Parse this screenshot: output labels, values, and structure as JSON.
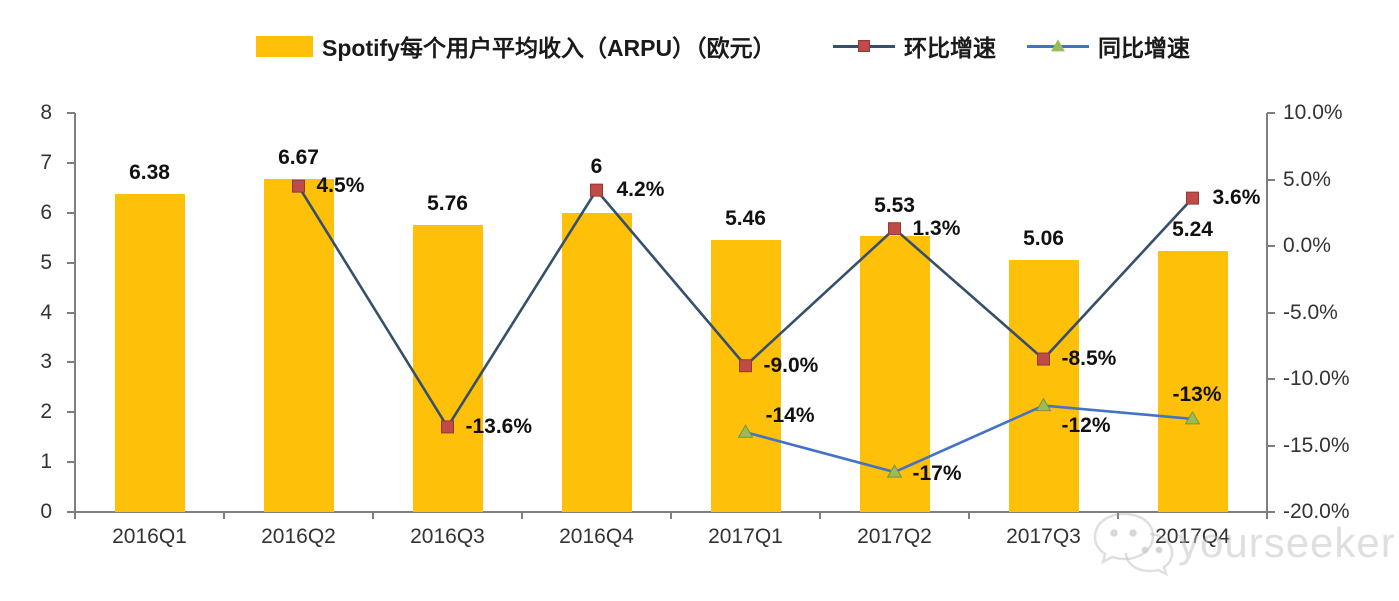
{
  "chart_data": {
    "type": "combo",
    "categories": [
      "2016Q1",
      "2016Q2",
      "2016Q3",
      "2016Q4",
      "2017Q1",
      "2017Q2",
      "2017Q3",
      "2017Q4"
    ],
    "series": [
      {
        "name": "Spotify每个用户平均收入（ARPU）（欧元）",
        "type": "bar",
        "yaxis": "left",
        "color": "#FFC00A",
        "values": [
          6.38,
          6.67,
          5.76,
          6,
          5.46,
          5.53,
          5.06,
          5.24
        ],
        "labels": [
          "6.38",
          "6.67",
          "5.76",
          "6",
          "5.46",
          "5.53",
          "5.06",
          "5.24"
        ]
      },
      {
        "name": "环比增速",
        "type": "line",
        "yaxis": "right",
        "color": "#364F6B",
        "marker": "square",
        "marker_color": "#BE4B48",
        "marker_edge": "#953735",
        "values": [
          null,
          4.5,
          -13.6,
          4.2,
          -9.0,
          1.3,
          -8.5,
          3.6
        ],
        "labels": [
          null,
          "4.5%",
          "-13.6%",
          "4.2%",
          "-9.0%",
          "1.3%",
          "-8.5%",
          "3.6%"
        ]
      },
      {
        "name": "同比增速",
        "type": "line",
        "yaxis": "right",
        "color": "#4472C4",
        "marker": "triangle",
        "marker_color": "#9BBB59",
        "marker_edge": "#77933C",
        "values": [
          null,
          null,
          null,
          null,
          -14,
          -17,
          -12,
          -13
        ],
        "labels": [
          null,
          null,
          null,
          null,
          "-14%",
          "-17%",
          "-12%",
          "-13%"
        ]
      }
    ],
    "left_axis": {
      "min": 0,
      "max": 8,
      "tick_labels": [
        "8",
        "7",
        "6",
        "5",
        "4",
        "3",
        "2",
        "1",
        "0"
      ]
    },
    "right_axis": {
      "min": -20,
      "max": 10,
      "tick_labels": [
        "10.0%",
        "5.0%",
        "0.0%",
        "-5.0%",
        "-10.0%",
        "-15.0%",
        "-20.0%"
      ]
    },
    "grid": false,
    "legend_position": "top"
  },
  "watermark": {
    "text": "yourseeker",
    "icon": "wechat-icon"
  }
}
